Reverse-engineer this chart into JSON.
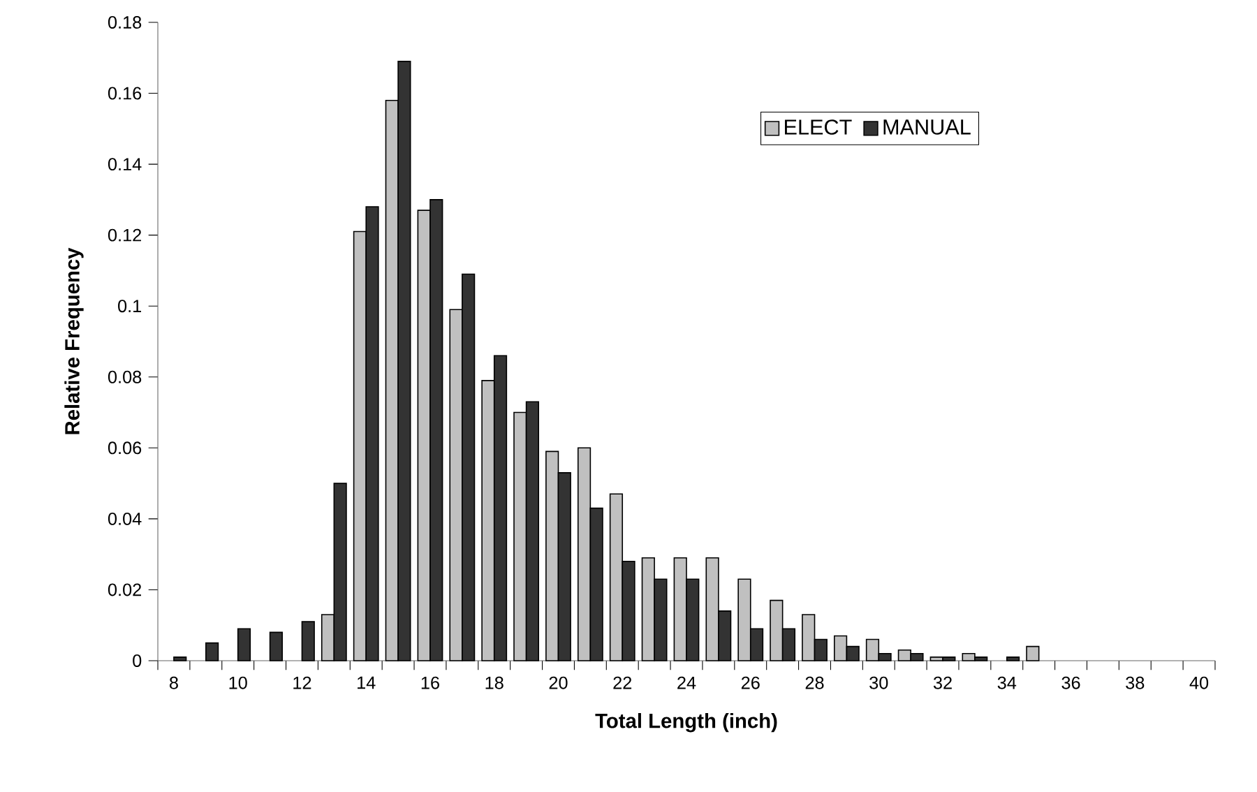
{
  "chart_data": {
    "type": "bar",
    "xlabel": "Total Length (inch)",
    "ylabel": "Relative Frequency",
    "categories": [
      "8",
      null,
      "10",
      null,
      "12",
      null,
      "14",
      null,
      "16",
      null,
      "18",
      null,
      "20",
      null,
      "22",
      null,
      "24",
      null,
      "26",
      null,
      "28",
      null,
      "30",
      null,
      "32",
      null,
      "34",
      null,
      "36",
      null,
      "38",
      null,
      "40"
    ],
    "series": [
      {
        "name": "ELECT",
        "color": "#c0c0c0",
        "values": [
          0,
          0,
          0,
          0,
          0,
          0.013,
          0.121,
          0.158,
          0.127,
          0.099,
          0.079,
          0.07,
          0.059,
          0.06,
          0.047,
          0.029,
          0.029,
          0.029,
          0.023,
          0.017,
          0.013,
          0.007,
          0.006,
          0.003,
          0.001,
          0.002,
          0,
          0.004,
          0,
          0,
          0,
          0,
          0
        ]
      },
      {
        "name": "MANUAL",
        "color": "#333333",
        "values": [
          0.001,
          0.005,
          0.009,
          0.008,
          0.011,
          0.05,
          0.128,
          0.169,
          0.13,
          0.109,
          0.086,
          0.073,
          0.053,
          0.043,
          0.028,
          0.023,
          0.023,
          0.014,
          0.009,
          0.009,
          0.006,
          0.004,
          0.002,
          0.002,
          0.001,
          0.001,
          0.001,
          0,
          0,
          0,
          0,
          0,
          0
        ]
      }
    ],
    "ylim": [
      0,
      0.18
    ],
    "yticks": [
      0,
      0.02,
      0.04,
      0.06,
      0.08,
      0.1,
      0.12,
      0.14,
      0.16,
      0.18
    ],
    "grid": false,
    "legend": "top right"
  }
}
